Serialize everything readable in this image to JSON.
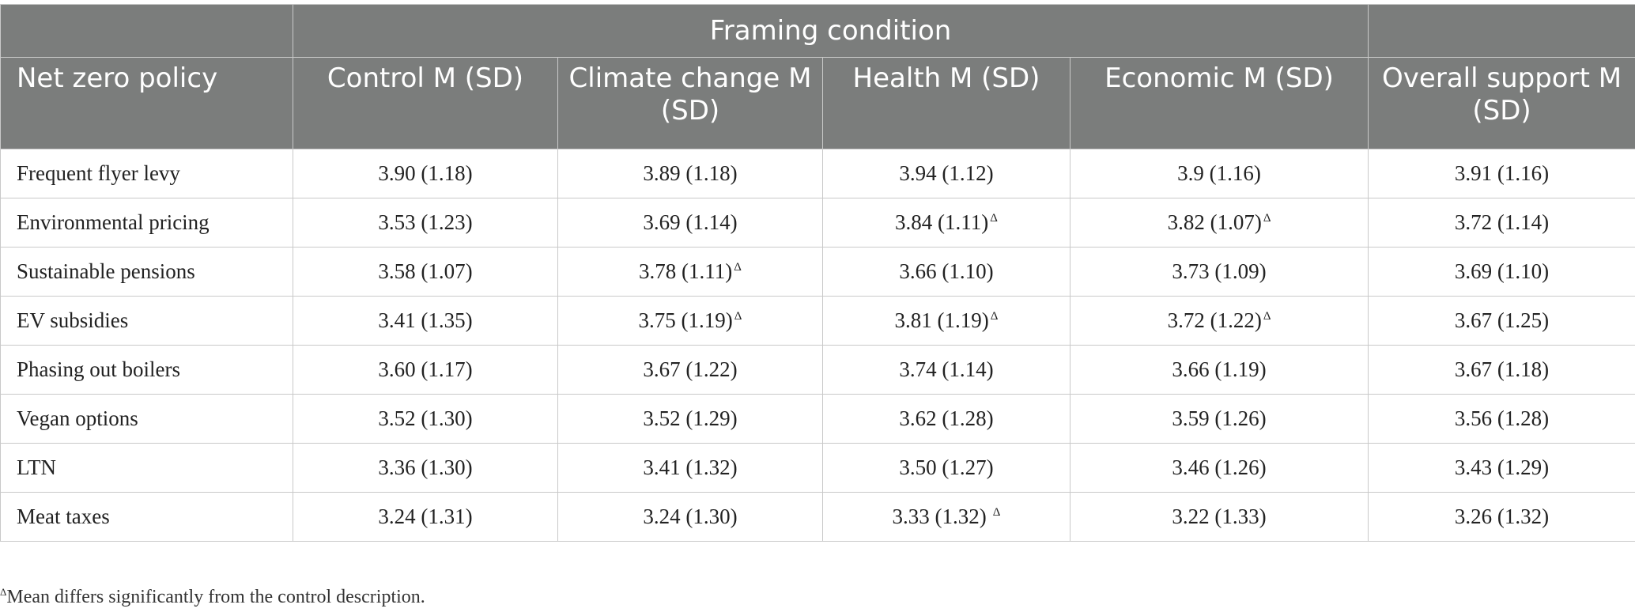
{
  "header": {
    "group_label": "Framing condition",
    "columns": [
      "Net zero policy",
      "Control M (SD)",
      "Climate change M (SD)",
      "Health M (SD)",
      "Economic M (SD)",
      "Overall support M (SD)"
    ]
  },
  "rows": [
    {
      "policy": "Frequent flyer levy",
      "control": "3.90 (1.18)",
      "climate": "3.89 (1.18)",
      "health": "3.94 (1.12)",
      "economic": "3.9 (1.16)",
      "overall": "3.91 (1.16)"
    },
    {
      "policy": "Environmental pricing",
      "control": "3.53 (1.23)",
      "climate": "3.69 (1.14)",
      "health": "3.84 (1.11)",
      "economic": "3.82 (1.07)",
      "overall": "3.72 (1.14)"
    },
    {
      "policy": "Sustainable pensions",
      "control": "3.58 (1.07)",
      "climate": "3.78 (1.11)",
      "health": "3.66 (1.10)",
      "economic": "3.73 (1.09)",
      "overall": "3.69 (1.10)"
    },
    {
      "policy": "EV subsidies",
      "control": "3.41 (1.35)",
      "climate": "3.75 (1.19)",
      "health": "3.81 (1.19)",
      "economic": "3.72 (1.22)",
      "overall": "3.67 (1.25)"
    },
    {
      "policy": "Phasing out boilers",
      "control": "3.60 (1.17)",
      "climate": "3.67 (1.22)",
      "health": "3.74 (1.14)",
      "economic": "3.66 (1.19)",
      "overall": "3.67 (1.18)"
    },
    {
      "policy": "Vegan options",
      "control": "3.52 (1.30)",
      "climate": "3.52 (1.29)",
      "health": "3.62 (1.28)",
      "economic": "3.59 (1.26)",
      "overall": "3.56 (1.28)"
    },
    {
      "policy": "LTN",
      "control": "3.36 (1.30)",
      "climate": "3.41 (1.32)",
      "health": "3.50 (1.27)",
      "economic": "3.46 (1.26)",
      "overall": "3.43 (1.29)"
    },
    {
      "policy": "Meat taxes",
      "control": "3.24 (1.31)",
      "climate": "3.24 (1.30)",
      "health": "3.33 (1.32)",
      "economic": "3.22 (1.33)",
      "overall": "3.26 (1.32)"
    }
  ],
  "significance_marker": "Δ",
  "footnote": {
    "marker": "Δ",
    "text": "Mean differs significantly from the control description."
  }
}
